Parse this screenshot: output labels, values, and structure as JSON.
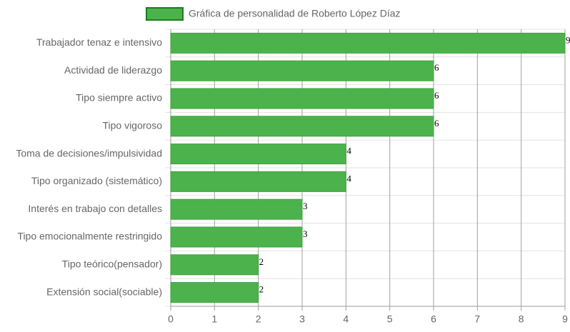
{
  "chart_data": {
    "type": "bar",
    "orientation": "horizontal",
    "legend": "Gráfica de personalidad de Roberto López Díaz",
    "color": "#4cb34c",
    "categories": [
      "Trabajador tenaz e intensivo",
      "Actividad de liderazgo",
      "Tipo siempre activo",
      "Tipo vigoroso",
      "Toma de decisiones/impulsividad",
      "Tipo organizado (sistemático)",
      "Interés en trabajo con detalles",
      "Tipo emocionalmente restringido",
      "Tipo teórico(pensador)",
      "Extensión social(sociable)"
    ],
    "values": [
      9,
      6,
      6,
      6,
      4,
      4,
      3,
      3,
      2,
      2
    ],
    "xlim": [
      0,
      9
    ],
    "xticks": [
      0,
      1,
      2,
      3,
      4,
      5,
      6,
      7,
      8,
      9
    ],
    "grid": true
  }
}
